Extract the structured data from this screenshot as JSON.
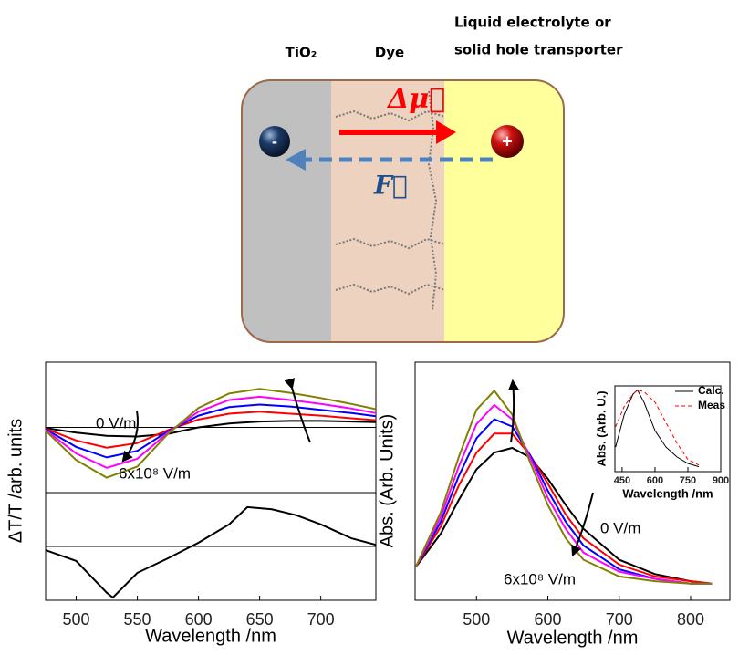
{
  "diagram": {
    "tio2": "TiO₂",
    "dye": "Dye",
    "electrolyte_1": "Liquid electrolyte or",
    "electrolyte_2": "solid hole transporter",
    "dipole": "Δμ⃗",
    "field": "F⃗",
    "electron": "-",
    "hole": "+"
  },
  "chart_data": [
    {
      "type": "line",
      "ylabel": "ΔT/T /arb. units",
      "xlim": [
        475,
        745
      ],
      "ylim": [
        -1,
        1
      ],
      "zero_line": true,
      "x": [
        475,
        500,
        525,
        550,
        575,
        600,
        625,
        650,
        675,
        700,
        725,
        745
      ],
      "series": [
        {
          "color": "#000000",
          "values": [
            -0.01,
            -0.08,
            -0.13,
            -0.14,
            -0.1,
            0.0,
            0.06,
            0.09,
            0.1,
            0.1,
            0.09,
            0.08
          ]
        },
        {
          "color": "#ff0000",
          "values": [
            -0.02,
            -0.2,
            -0.31,
            -0.24,
            -0.04,
            0.12,
            0.21,
            0.24,
            0.21,
            0.18,
            0.14,
            0.11
          ]
        },
        {
          "color": "#0000ff",
          "values": [
            -0.03,
            -0.3,
            -0.46,
            -0.36,
            -0.06,
            0.18,
            0.31,
            0.35,
            0.32,
            0.27,
            0.22,
            0.17
          ]
        },
        {
          "color": "#ff00ff",
          "values": [
            -0.04,
            -0.4,
            -0.62,
            -0.48,
            -0.08,
            0.24,
            0.42,
            0.47,
            0.42,
            0.36,
            0.29,
            0.22
          ]
        },
        {
          "color": "#808000",
          "values": [
            -0.05,
            -0.5,
            -0.77,
            -0.6,
            -0.1,
            0.3,
            0.52,
            0.59,
            0.53,
            0.45,
            0.36,
            0.28
          ]
        }
      ],
      "annotations": [
        "0 V/m",
        "6x10⁸ V/m"
      ]
    },
    {
      "type": "line",
      "xlabel": "Wavelength /nm",
      "xlim": [
        475,
        745
      ],
      "ylim": [
        -1,
        1
      ],
      "zero_line": true,
      "xticks": [
        500,
        550,
        600,
        650,
        700
      ],
      "x": [
        475,
        500,
        525,
        530,
        550,
        575,
        600,
        625,
        640,
        660,
        680,
        700,
        725,
        745
      ],
      "series": [
        {
          "color": "#000000",
          "values": [
            -0.07,
            -0.27,
            -0.86,
            -0.95,
            -0.49,
            -0.22,
            0.07,
            0.41,
            0.73,
            0.69,
            0.58,
            0.41,
            0.15,
            0.03
          ]
        }
      ]
    },
    {
      "type": "line",
      "xlabel": "Wavelength /nm",
      "ylabel": "Abs. (Arb. Units)",
      "xlim": [
        414,
        855
      ],
      "ylim": [
        0,
        1
      ],
      "xticks": [
        500,
        600,
        700,
        800
      ],
      "x": [
        415,
        450,
        475,
        500,
        525,
        550,
        575,
        600,
        625,
        650,
        700,
        750,
        800,
        830
      ],
      "series": [
        {
          "color": "#000000",
          "values": [
            0.14,
            0.28,
            0.42,
            0.55,
            0.62,
            0.64,
            0.6,
            0.51,
            0.4,
            0.3,
            0.17,
            0.11,
            0.08,
            0.07
          ]
        },
        {
          "color": "#ff0000",
          "values": [
            0.14,
            0.31,
            0.48,
            0.62,
            0.7,
            0.7,
            0.61,
            0.49,
            0.36,
            0.26,
            0.15,
            0.1,
            0.08,
            0.07
          ]
        },
        {
          "color": "#0000ff",
          "values": [
            0.14,
            0.33,
            0.52,
            0.68,
            0.76,
            0.73,
            0.61,
            0.46,
            0.33,
            0.23,
            0.13,
            0.09,
            0.07,
            0.07
          ]
        },
        {
          "color": "#ff00ff",
          "values": [
            0.14,
            0.35,
            0.56,
            0.74,
            0.82,
            0.76,
            0.6,
            0.43,
            0.3,
            0.2,
            0.12,
            0.09,
            0.07,
            0.07
          ]
        },
        {
          "color": "#808000",
          "values": [
            0.14,
            0.37,
            0.6,
            0.8,
            0.88,
            0.78,
            0.58,
            0.4,
            0.26,
            0.17,
            0.1,
            0.08,
            0.07,
            0.07
          ]
        }
      ],
      "annotations": [
        "0 V/m",
        "6x10⁸ V/m"
      ]
    },
    {
      "type": "line",
      "xlabel": "Wavelength /nm",
      "ylabel": "Abs. (Arb. U.)",
      "xlim": [
        417,
        900
      ],
      "ylim": [
        0,
        1.05
      ],
      "xticks": [
        450,
        600,
        750,
        900
      ],
      "legend": "upper right",
      "x": [
        420,
        460,
        500,
        520,
        550,
        600,
        650,
        700,
        750,
        800
      ],
      "series": [
        {
          "name": "Calc.",
          "color": "#000000",
          "values": [
            0.3,
            0.7,
            0.95,
            1.0,
            0.85,
            0.5,
            0.3,
            0.18,
            0.1,
            0.06
          ]
        },
        {
          "name": "Meas",
          "color": "#ff0000",
          "dashed": true,
          "values": [
            0.55,
            0.8,
            0.95,
            1.0,
            0.98,
            0.85,
            0.6,
            0.35,
            0.15,
            0.08
          ]
        }
      ]
    }
  ]
}
